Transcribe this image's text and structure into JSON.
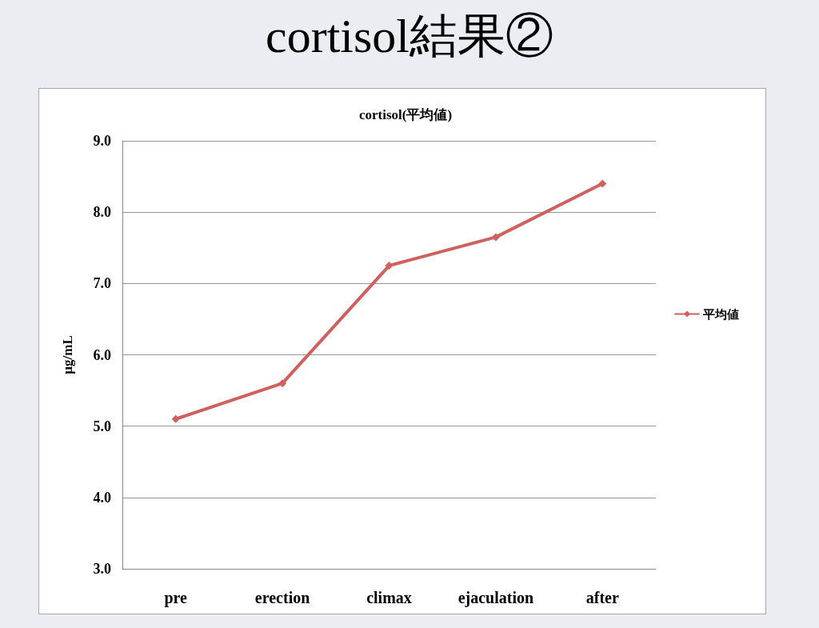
{
  "chart_data": {
    "type": "line",
    "title": "cortisol結果②",
    "subtitle": "cortisol(平均値)",
    "ylabel": "µg/mL",
    "categories": [
      "pre",
      "erection",
      "climax",
      "ejaculation",
      "after"
    ],
    "series": [
      {
        "name": "平均値",
        "color": "#d0605e",
        "values": [
          5.1,
          5.6,
          7.25,
          7.65,
          8.4
        ]
      }
    ],
    "ylim": [
      3,
      9
    ],
    "yticks": [
      {
        "value": 3,
        "label": "3.0"
      },
      {
        "value": 4,
        "label": "4.0"
      },
      {
        "value": 5,
        "label": "5.0"
      },
      {
        "value": 6,
        "label": "6.0"
      },
      {
        "value": 7,
        "label": "7.0"
      },
      {
        "value": 8,
        "label": "8.0"
      },
      {
        "value": 9,
        "label": "9.0"
      }
    ],
    "grid": "y",
    "legend": "right",
    "marker": "diamond",
    "line_style": "solid"
  }
}
